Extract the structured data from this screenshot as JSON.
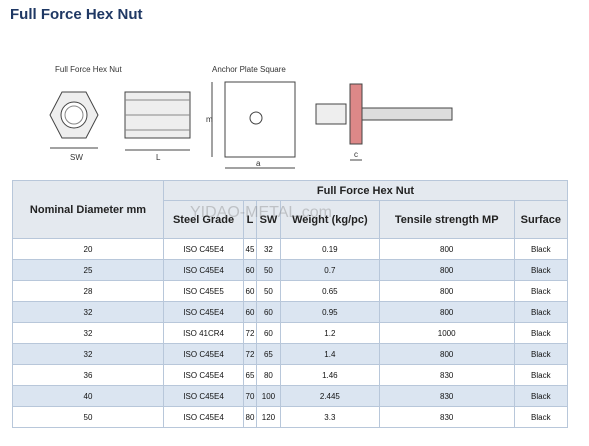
{
  "header": {
    "title": "Full Force Hex Nut"
  },
  "diagram": {
    "nut_label": "Full Force Hex Nut",
    "plate_label": "Anchor Plate Square",
    "sw": "SW",
    "l": "L",
    "a": "a",
    "m": "m",
    "c": "c",
    "watermark": "YIDAO-METAL.com"
  },
  "table": {
    "group_header": "Full Force Hex Nut",
    "columns": [
      "Nominal Diameter mm",
      "Steel Grade",
      "L",
      "SW",
      "Weight (kg/pc)",
      "Tensile strength MP",
      "Surface"
    ],
    "rows": [
      [
        20,
        "ISO C45E4",
        45,
        32,
        0.19,
        800,
        "Black"
      ],
      [
        25,
        "ISO C45E4",
        60,
        50,
        0.7,
        800,
        "Black"
      ],
      [
        28,
        "ISO C45E5",
        60,
        50,
        0.65,
        800,
        "Black"
      ],
      [
        32,
        "ISO C45E4",
        60,
        60,
        0.95,
        800,
        "Black"
      ],
      [
        32,
        "ISO 41CR4",
        72,
        60,
        1.2,
        1000,
        "Black"
      ],
      [
        32,
        "ISO C45E4",
        72,
        65,
        1.4,
        800,
        "Black"
      ],
      [
        36,
        "ISO C45E4",
        65,
        80,
        1.46,
        830,
        "Black"
      ],
      [
        40,
        "ISO C45E4",
        70,
        100,
        2.445,
        830,
        "Black"
      ],
      [
        50,
        "ISO C45E4",
        80,
        120,
        3.3,
        830,
        "Black"
      ]
    ]
  }
}
